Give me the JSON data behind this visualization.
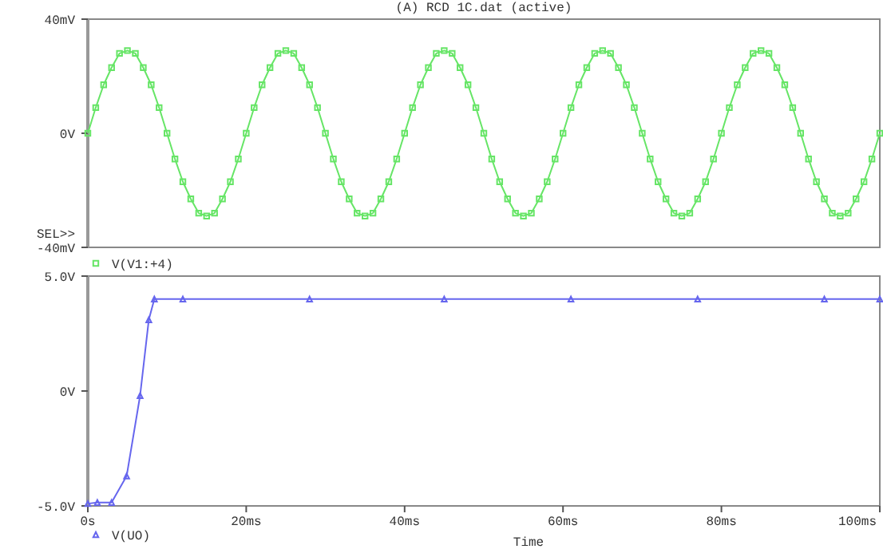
{
  "chart_data": [
    {
      "type": "line",
      "title": "(A) RCD 1C.dat (active)",
      "xlim": [
        0,
        100
      ],
      "tick_labels": "y",
      "ylim": [
        -40,
        40
      ],
      "yticks": [
        {
          "value": 40,
          "label": "40mV"
        },
        {
          "value": 0,
          "label": "0V"
        },
        {
          "value": -40,
          "label": "-40mV"
        }
      ],
      "annotations": [
        "SEL>>"
      ],
      "legend": "bottom left",
      "grid": false,
      "x": [
        0,
        1,
        2,
        3,
        4,
        5,
        6,
        7,
        8,
        9,
        10,
        11,
        12,
        13,
        14,
        15,
        16,
        17,
        18,
        19,
        20,
        21,
        22,
        23,
        24,
        25,
        26,
        27,
        28,
        29,
        30,
        31,
        32,
        33,
        34,
        35,
        36,
        37,
        38,
        39,
        40,
        41,
        42,
        43,
        44,
        45,
        46,
        47,
        48,
        49,
        50,
        51,
        52,
        53,
        54,
        55,
        56,
        57,
        58,
        59,
        60,
        61,
        62,
        63,
        64,
        65,
        66,
        67,
        68,
        69,
        70,
        71,
        72,
        73,
        74,
        75,
        76,
        77,
        78,
        79,
        80,
        81,
        82,
        83,
        84,
        85,
        86,
        87,
        88,
        89,
        90,
        91,
        92,
        93,
        94,
        95,
        96,
        97,
        98,
        99,
        100
      ],
      "series": [
        {
          "name": "V(V1:+4)",
          "color": "#66e566",
          "marker": "square",
          "values": [
            0,
            9,
            17,
            23,
            28,
            29,
            28,
            23,
            17,
            9,
            0,
            -9,
            -17,
            -23,
            -28,
            -29,
            -28,
            -23,
            -17,
            -9,
            0,
            9,
            17,
            23,
            28,
            29,
            28,
            23,
            17,
            9,
            0,
            -9,
            -17,
            -23,
            -28,
            -29,
            -28,
            -23,
            -17,
            -9,
            0,
            9,
            17,
            23,
            28,
            29,
            28,
            23,
            17,
            9,
            0,
            -9,
            -17,
            -23,
            -28,
            -29,
            -28,
            -23,
            -17,
            -9,
            0,
            9,
            17,
            23,
            28,
            29,
            28,
            23,
            17,
            9,
            0,
            -9,
            -17,
            -23,
            -28,
            -29,
            -28,
            -23,
            -17,
            -9,
            0,
            9,
            17,
            23,
            28,
            29,
            28,
            23,
            17,
            9,
            0,
            -9,
            -17,
            -23,
            -28,
            -29,
            -28,
            -23,
            -17,
            -9,
            0
          ]
        }
      ]
    },
    {
      "type": "line",
      "xlim": [
        0,
        100
      ],
      "xticks": [
        {
          "value": 0,
          "label": "0s"
        },
        {
          "value": 20,
          "label": "20ms"
        },
        {
          "value": 40,
          "label": "40ms"
        },
        {
          "value": 60,
          "label": "60ms"
        },
        {
          "value": 80,
          "label": "80ms"
        },
        {
          "value": 100,
          "label": "100ms"
        }
      ],
      "ylim": [
        -5,
        5
      ],
      "yticks": [
        {
          "value": 5,
          "label": "5.0V"
        },
        {
          "value": 0,
          "label": "0V"
        },
        {
          "value": -5,
          "label": "-5.0V"
        }
      ],
      "xlabel": "Time",
      "legend": "bottom left",
      "grid": false,
      "x": [
        0,
        1.2,
        3,
        4.9,
        6.6,
        7.7,
        8.4,
        12,
        28,
        45,
        61,
        77,
        93,
        100
      ],
      "series": [
        {
          "name": "V(UO)",
          "color": "#6666ee",
          "marker": "triangle",
          "values": [
            -4.9,
            -4.85,
            -4.85,
            -3.7,
            -0.2,
            3.1,
            4.0,
            4.0,
            4.0,
            4.0,
            4.0,
            4.0,
            4.0,
            4.0
          ]
        }
      ]
    }
  ]
}
